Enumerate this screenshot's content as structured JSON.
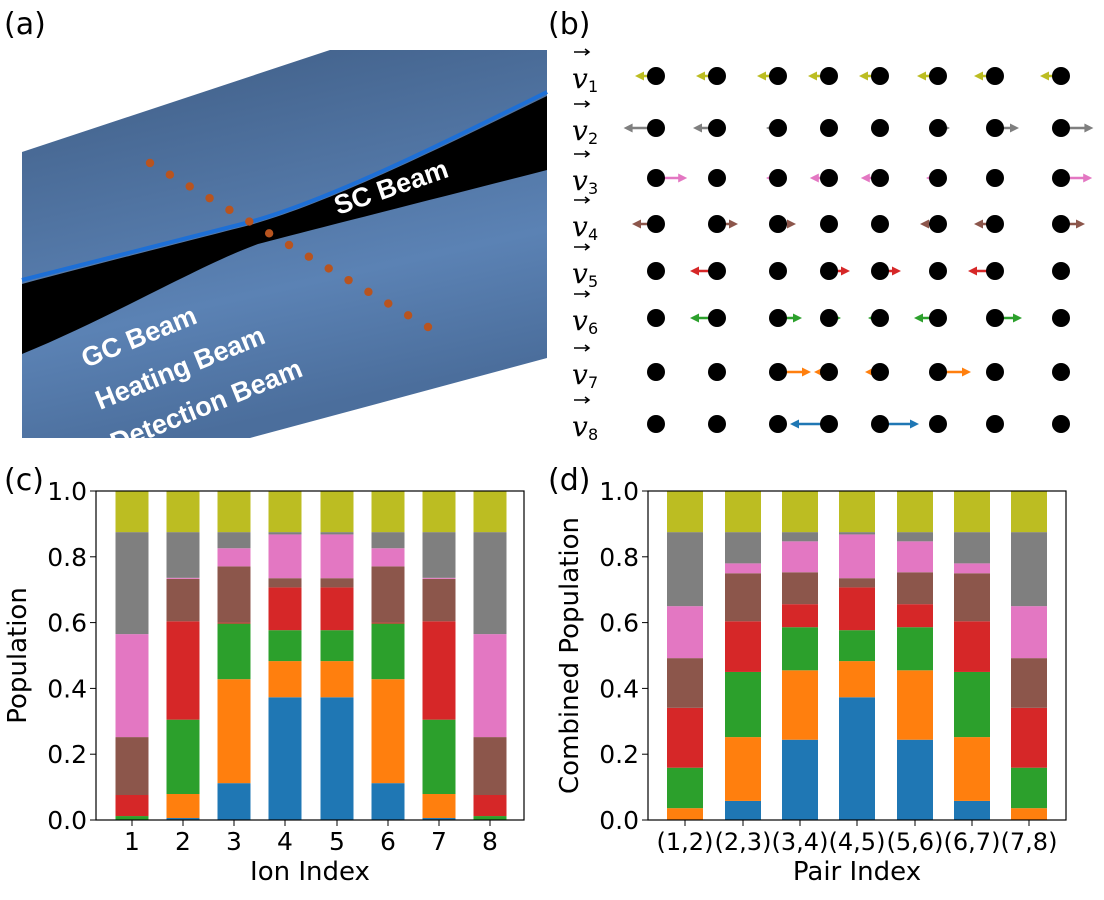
{
  "panel_labels": {
    "a": "(a)",
    "b": "(b)",
    "c": "(c)",
    "d": "(d)"
  },
  "panel_a": {
    "beam_labels": [
      "SC Beam",
      "GC Beam",
      "Heating Beam",
      "Detection Beam"
    ],
    "ion_count": 15,
    "colors": {
      "slab": "#4f72a0",
      "beam": "#000000",
      "ion": "#b8541f"
    }
  },
  "panel_b": {
    "mode_labels": [
      {
        "symbol": "v",
        "sub": "1"
      },
      {
        "symbol": "v",
        "sub": "2"
      },
      {
        "symbol": "v",
        "sub": "3"
      },
      {
        "symbol": "v",
        "sub": "4"
      },
      {
        "symbol": "v",
        "sub": "5"
      },
      {
        "symbol": "v",
        "sub": "6"
      },
      {
        "symbol": "v",
        "sub": "7"
      },
      {
        "symbol": "v",
        "sub": "8"
      }
    ],
    "mode_colors": [
      "#bcbd22",
      "#7f7f7f",
      "#e377c2",
      "#8c564b",
      "#d62728",
      "#2ca02c",
      "#ff7f0e",
      "#1f77b4"
    ],
    "mode_vectors": [
      [
        -0.35,
        -0.35,
        -0.35,
        -0.35,
        -0.35,
        -0.35,
        -0.35,
        -0.35
      ],
      [
        -0.54,
        -0.4,
        -0.2,
        -0.05,
        0.05,
        0.2,
        0.4,
        0.54
      ],
      [
        0.52,
        0.0,
        -0.2,
        -0.32,
        -0.32,
        -0.2,
        0.0,
        0.52
      ],
      [
        -0.4,
        0.35,
        0.3,
        0.0,
        0.0,
        -0.3,
        -0.35,
        0.4
      ],
      [
        0.15,
        -0.45,
        0.0,
        0.35,
        0.35,
        0.0,
        -0.45,
        0.15
      ],
      [
        0.0,
        -0.45,
        0.4,
        0.2,
        -0.2,
        -0.4,
        0.45,
        0.0
      ],
      [
        0.0,
        -0.15,
        0.55,
        -0.25,
        -0.25,
        0.55,
        -0.15,
        0.0
      ],
      [
        0.0,
        0.0,
        0.1,
        -0.65,
        0.65,
        -0.1,
        0.0,
        0.0
      ]
    ]
  },
  "chart_data": [
    {
      "type": "bar",
      "stacked": true,
      "categories": [
        "1",
        "2",
        "3",
        "4",
        "5",
        "6",
        "7",
        "8"
      ],
      "xlabel": "Ion Index",
      "ylabel": "Population",
      "ylim": [
        0,
        1.0
      ],
      "yticks": [
        "0.0",
        "0.2",
        "0.4",
        "0.6",
        "0.8",
        "1.0"
      ],
      "grid": false,
      "series": [
        {
          "color": "#1f77b4",
          "values": [
            0.0,
            0.006,
            0.112,
            0.373,
            0.373,
            0.112,
            0.006,
            0.0
          ]
        },
        {
          "color": "#ff7f0e",
          "values": [
            0.0,
            0.073,
            0.316,
            0.11,
            0.11,
            0.316,
            0.073,
            0.0
          ]
        },
        {
          "color": "#2ca02c",
          "values": [
            0.012,
            0.226,
            0.169,
            0.094,
            0.094,
            0.169,
            0.226,
            0.012
          ]
        },
        {
          "color": "#d62728",
          "values": [
            0.064,
            0.299,
            0.003,
            0.13,
            0.13,
            0.003,
            0.299,
            0.064
          ]
        },
        {
          "color": "#8c564b",
          "values": [
            0.176,
            0.129,
            0.171,
            0.028,
            0.028,
            0.171,
            0.129,
            0.176
          ]
        },
        {
          "color": "#e377c2",
          "values": [
            0.313,
            0.003,
            0.055,
            0.133,
            0.133,
            0.055,
            0.003,
            0.313
          ]
        },
        {
          "color": "#7f7f7f",
          "values": [
            0.31,
            0.139,
            0.049,
            0.007,
            0.007,
            0.049,
            0.139,
            0.31
          ]
        },
        {
          "color": "#bcbd22",
          "values": [
            0.125,
            0.125,
            0.125,
            0.125,
            0.125,
            0.125,
            0.125,
            0.125
          ]
        }
      ]
    },
    {
      "type": "bar",
      "stacked": true,
      "categories": [
        "(1,2)",
        "(2,3)",
        "(3,4)",
        "(4,5)",
        "(5,6)",
        "(6,7)",
        "(7,8)"
      ],
      "xlabel": "Pair Index",
      "ylabel": "Combined Population",
      "ylim": [
        0,
        1.0
      ],
      "yticks": [
        "0.0",
        "0.2",
        "0.4",
        "0.6",
        "0.8",
        "1.0"
      ],
      "grid": false,
      "series": [
        {
          "color": "#1f77b4",
          "values": [
            0.0,
            0.058,
            0.244,
            0.373,
            0.244,
            0.058,
            0.0
          ]
        },
        {
          "color": "#ff7f0e",
          "values": [
            0.036,
            0.194,
            0.211,
            0.11,
            0.211,
            0.194,
            0.036
          ]
        },
        {
          "color": "#2ca02c",
          "values": [
            0.123,
            0.198,
            0.131,
            0.094,
            0.131,
            0.198,
            0.123
          ]
        },
        {
          "color": "#d62728",
          "values": [
            0.182,
            0.154,
            0.07,
            0.13,
            0.07,
            0.154,
            0.182
          ]
        },
        {
          "color": "#8c564b",
          "values": [
            0.151,
            0.146,
            0.097,
            0.028,
            0.097,
            0.146,
            0.151
          ]
        },
        {
          "color": "#e377c2",
          "values": [
            0.158,
            0.03,
            0.094,
            0.133,
            0.094,
            0.03,
            0.158
          ]
        },
        {
          "color": "#7f7f7f",
          "values": [
            0.225,
            0.095,
            0.028,
            0.007,
            0.028,
            0.095,
            0.225
          ]
        },
        {
          "color": "#bcbd22",
          "values": [
            0.125,
            0.125,
            0.125,
            0.125,
            0.125,
            0.125,
            0.125
          ]
        }
      ]
    }
  ]
}
